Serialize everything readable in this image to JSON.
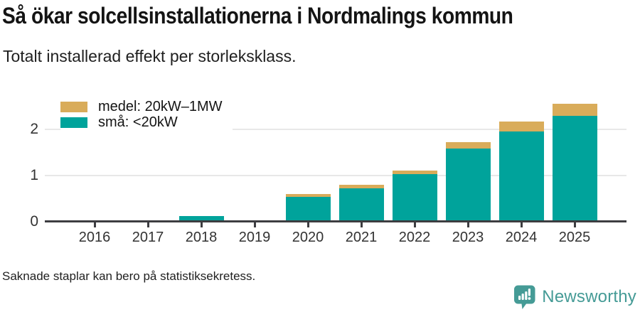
{
  "header": {
    "title": "Så ökar solcellsinstallationerna i Nordmalings kommun",
    "subtitle": "Totalt installerad effekt per storleksklass."
  },
  "legend": [
    {
      "label": "medel: 20kW–1MW",
      "color": "#d9ac5a"
    },
    {
      "label": "små: <20kW",
      "color": "#00a39b"
    }
  ],
  "chart_data": {
    "type": "bar",
    "stacked": true,
    "title": "Så ökar solcellsinstallationerna i Nordmalings kommun",
    "subtitle": "Totalt installerad effekt per storleksklass.",
    "categories": [
      "2016",
      "2017",
      "2018",
      "2019",
      "2020",
      "2021",
      "2022",
      "2023",
      "2024",
      "2025"
    ],
    "series": [
      {
        "name": "små: <20kW",
        "color": "#00a39b",
        "values": [
          0,
          0,
          0.12,
          0,
          0.53,
          0.73,
          1.02,
          1.58,
          1.95,
          2.3
        ]
      },
      {
        "name": "medel: 20kW–1MW",
        "color": "#d9ac5a",
        "values": [
          0,
          0,
          0,
          0,
          0.06,
          0.07,
          0.08,
          0.14,
          0.22,
          0.26
        ]
      }
    ],
    "xlabel": "",
    "ylabel": "",
    "ylim": [
      0,
      2.6
    ],
    "yticks": [
      0,
      1,
      2
    ],
    "grid": "horizontal",
    "legend_position": "top-left"
  },
  "footer": {
    "note": "Saknade staplar kan bero på statistiksekretess."
  },
  "branding": {
    "name": "Newsworthy",
    "color": "#459b96",
    "icon": "newsworthy-bar-chart-bubble-icon"
  }
}
